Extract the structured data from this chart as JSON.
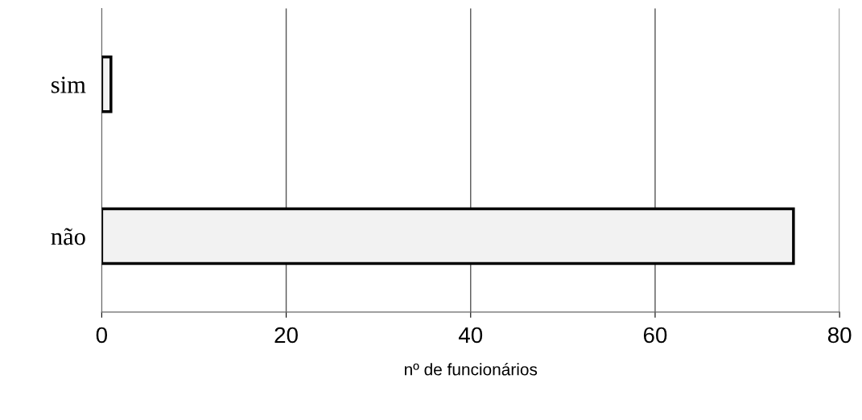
{
  "chart_data": {
    "type": "bar",
    "orientation": "horizontal",
    "categories": [
      "sim",
      "não"
    ],
    "values": [
      1,
      75
    ],
    "color": "#f2f2f2",
    "xlabel": "nº de funcionários",
    "xlim": [
      0,
      80
    ],
    "xticks": [
      0,
      20,
      40,
      60,
      80
    ],
    "grid": "x",
    "legend": false
  }
}
